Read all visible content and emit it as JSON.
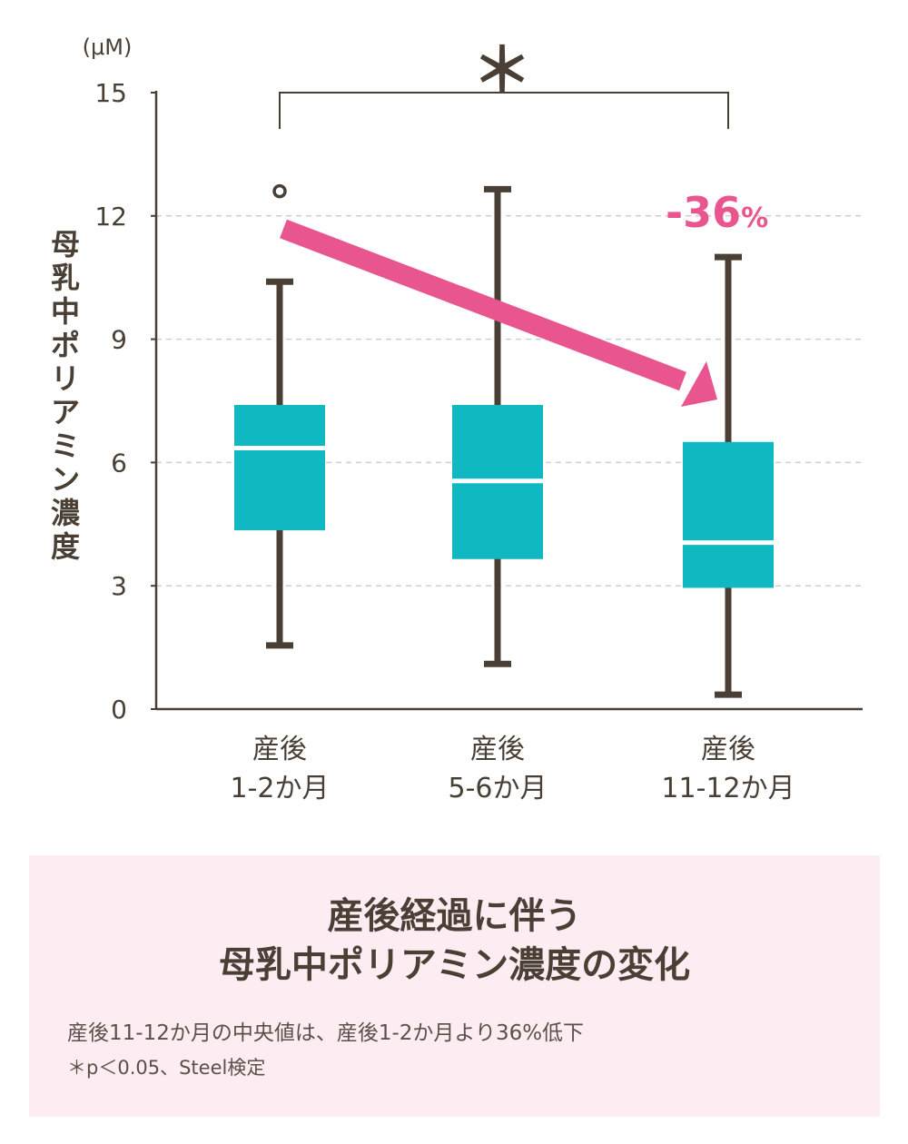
{
  "chart_data": {
    "type": "box",
    "unit": "(μM)",
    "ylabel": "母乳中ポリアミン濃度",
    "ylim": [
      0,
      15
    ],
    "yticks": [
      0,
      3,
      6,
      9,
      12,
      15
    ],
    "grid": true,
    "categories": [
      {
        "line1": "産後",
        "line2": "1-2か月"
      },
      {
        "line1": "産後",
        "line2": "5-6か月"
      },
      {
        "line1": "産後",
        "line2": "11-12か月"
      }
    ],
    "boxes": [
      {
        "min": 1.55,
        "q1": 4.35,
        "median": 6.35,
        "q3": 7.4,
        "max": 10.4,
        "outliers": [
          12.6
        ]
      },
      {
        "min": 1.1,
        "q1": 3.65,
        "median": 5.55,
        "q3": 7.4,
        "max": 12.65,
        "outliers": []
      },
      {
        "min": 0.35,
        "q1": 2.95,
        "median": 4.05,
        "q3": 6.5,
        "max": 11.0,
        "outliers": []
      }
    ],
    "significance": {
      "symbol": "＊",
      "between": [
        0,
        2
      ]
    },
    "change_label": {
      "value": "-36",
      "unit": "%"
    },
    "colors": {
      "box": "#10b8c2",
      "whisker": "#4a3f35",
      "arrow": "#e8558f",
      "grid": "#cfcfcf",
      "median": "#ffffff"
    }
  },
  "summary": {
    "title_line1": "産後経過に伴う",
    "title_line2": "母乳中ポリアミン濃度の変化",
    "note": "産後11-12か月の中央値は、産後1-2か月より36%低下",
    "footnote": "＊p＜0.05、Steel検定"
  }
}
